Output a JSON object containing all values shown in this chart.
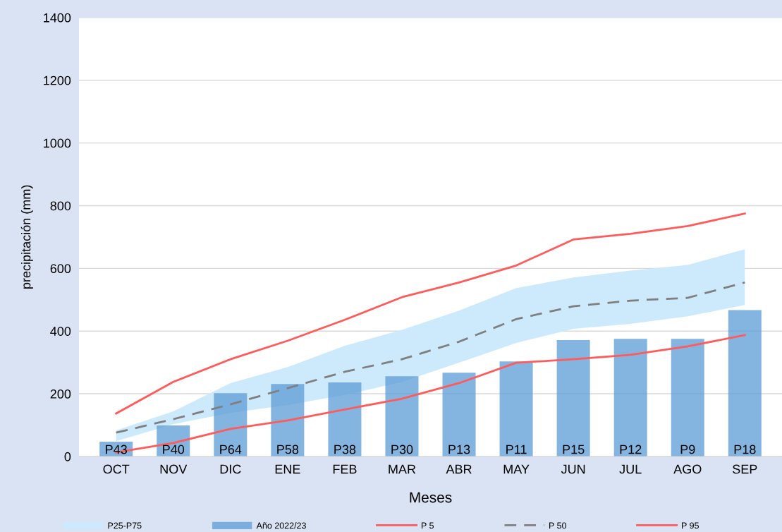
{
  "chart_data": {
    "type": "bar",
    "xlabel": "Meses",
    "ylabel": "precipitación (mm)",
    "categories": [
      "OCT",
      "NOV",
      "DIC",
      "ENE",
      "FEB",
      "MAR",
      "ABR",
      "MAY",
      "JUN",
      "JUL",
      "AGO",
      "SEP"
    ],
    "series": [
      {
        "name": "P25-P75",
        "type": "area",
        "color": "#cdeafc",
        "values": [
          null,
          null,
          null,
          null,
          null,
          null,
          null,
          null,
          null,
          null,
          null,
          null
        ],
        "lower": [
          49,
          103,
          139,
          164,
          196,
          238,
          299,
          362,
          407,
          423,
          447,
          483
        ],
        "upper": [
          83,
          144,
          234,
          285,
          353,
          404,
          465,
          537,
          571,
          593,
          611,
          661
        ]
      },
      {
        "name": "Año 2022/23",
        "color": "#5b9bd5",
        "values": [
          47,
          99,
          202,
          231,
          236,
          256,
          267,
          303,
          371,
          375,
          375,
          467
        ],
        "value_labels": [
          "P43",
          "P40",
          "P64",
          "P58",
          "P38",
          "P30",
          "P13",
          "P11",
          "P15",
          "P12",
          "P9",
          "P18"
        ]
      },
      {
        "name": "P 5",
        "type": "line",
        "color": "#ff5b5b",
        "line_style": "solid",
        "values": [
          13,
          43,
          88,
          115,
          150,
          184,
          234,
          299,
          310,
          324,
          351,
          387
        ]
      },
      {
        "name": "P 50",
        "type": "line",
        "color": "#7f7f7f",
        "line_style": "dashed",
        "values": [
          76,
          119,
          166,
          218,
          270,
          310,
          366,
          438,
          479,
          497,
          506,
          555
        ]
      },
      {
        "name": "P 95",
        "type": "line",
        "color": "#ff5b5b",
        "line_style": "solid",
        "values": [
          137,
          238,
          310,
          369,
          436,
          508,
          555,
          609,
          692,
          710,
          735,
          775
        ]
      }
    ],
    "ylim": [
      0,
      1400
    ],
    "yticks": [
      0,
      200,
      400,
      600,
      800,
      1000,
      1200,
      1400
    ],
    "grid": "y",
    "legend": "bottom"
  }
}
